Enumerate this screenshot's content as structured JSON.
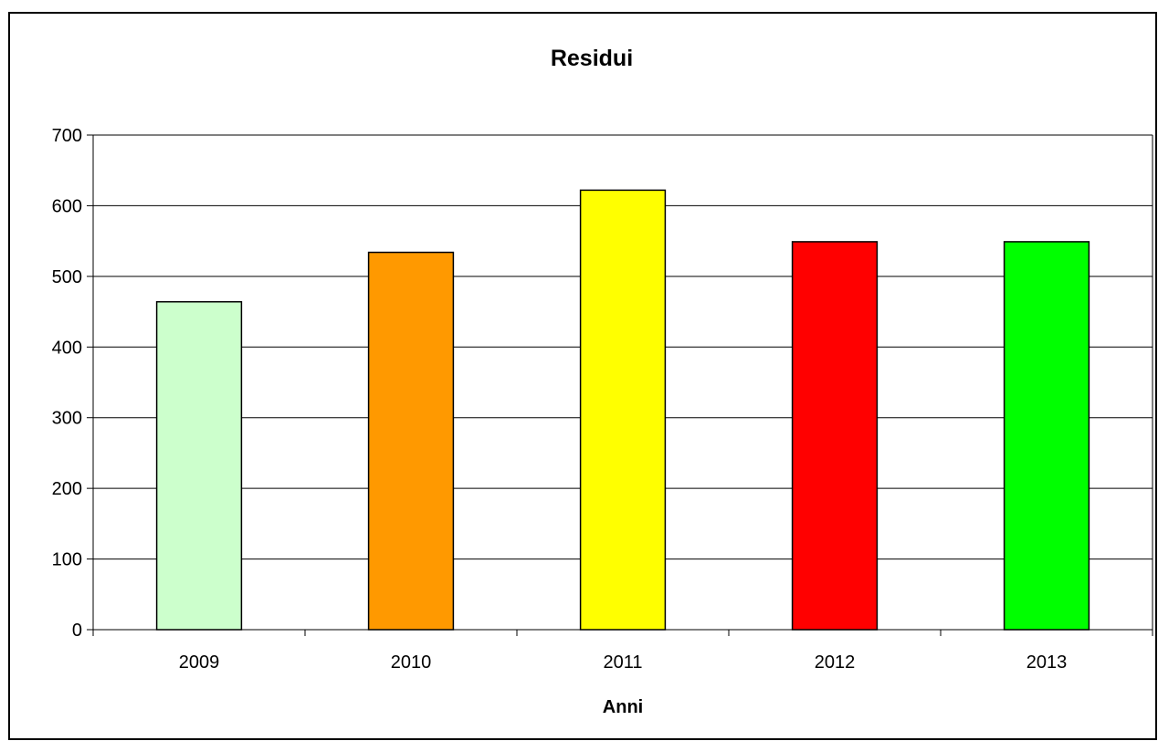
{
  "chart_data": {
    "type": "bar",
    "title": "Residui",
    "xlabel": "Anni",
    "ylabel": "",
    "categories": [
      "2009",
      "2010",
      "2011",
      "2012",
      "2013"
    ],
    "values": [
      464,
      534,
      622,
      549,
      549
    ],
    "colors": [
      "#CCFFCC",
      "#FF9900",
      "#FFFF00",
      "#FF0000",
      "#00FF00"
    ],
    "ylim": [
      0,
      700
    ],
    "yticks": [
      0,
      100,
      200,
      300,
      400,
      500,
      600,
      700
    ],
    "grid": true,
    "legend": "none"
  }
}
